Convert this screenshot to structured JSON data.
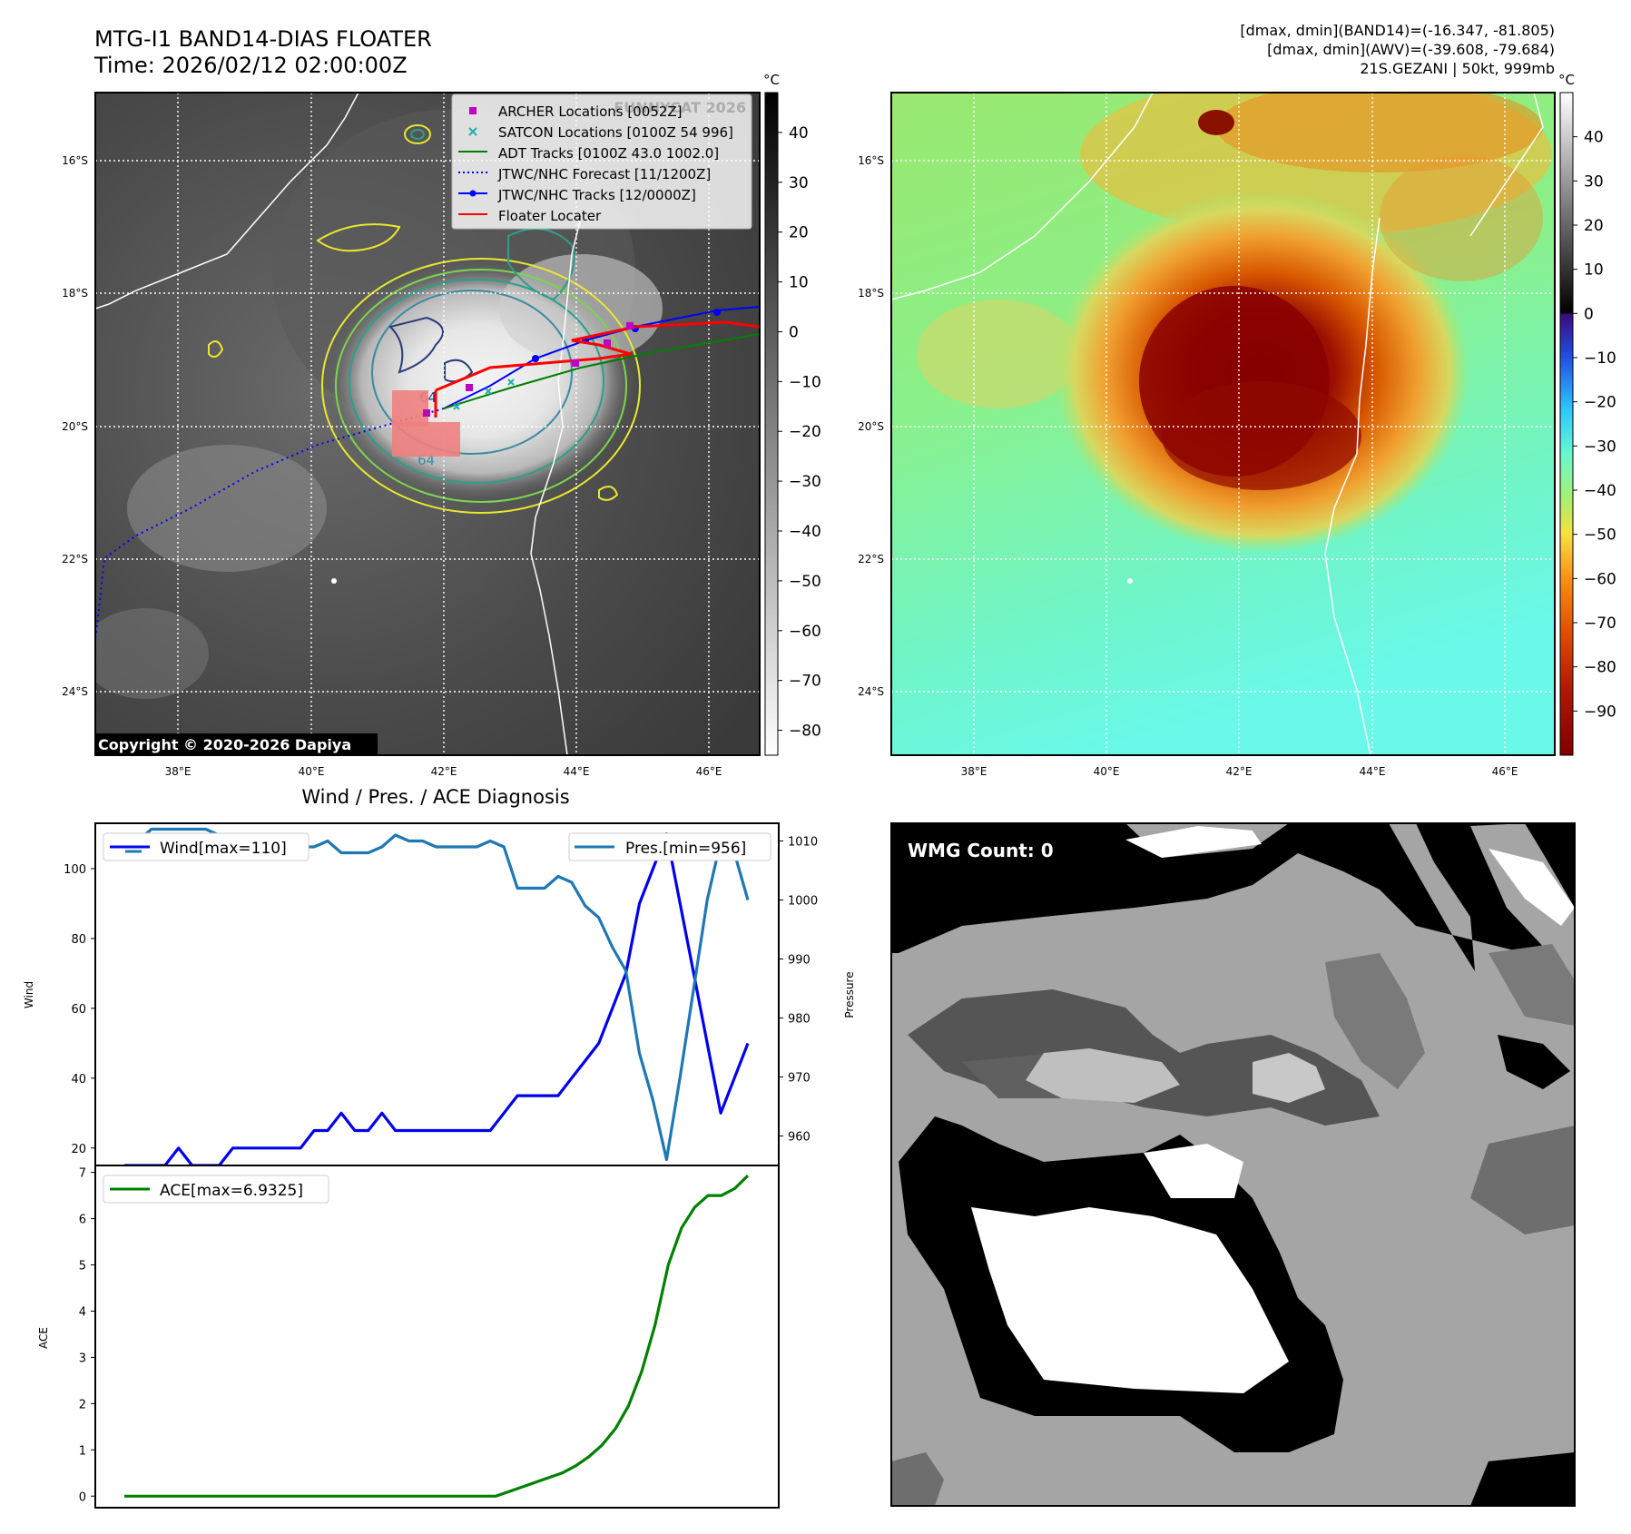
{
  "header": {
    "title_line1": "MTG-I1 BAND14-DIAS FLOATER",
    "title_line2": "Time: 2026/02/12 02:00:00Z",
    "info_line1": "[dmax, dmin](BAND14)=(-16.347, -81.805)",
    "info_line2": "[dmax, dmin](AWV)=(-39.608, -79.684)",
    "info_line3": "21S.GEZANI | 50kt, 999mb"
  },
  "map": {
    "lat_labels": [
      "16°S",
      "18°S",
      "20°S",
      "22°S",
      "24°S"
    ],
    "lon_labels": [
      "38°E",
      "40°E",
      "42°E",
      "44°E",
      "46°E"
    ],
    "watermark": "FUNNYCAT 2026",
    "copyright": "Copyright © 2020-2026 Dapiya",
    "contour_label": "64",
    "legend": [
      {
        "label": "ARCHER Locations [0052Z]",
        "color": "#c000c0",
        "kind": "square"
      },
      {
        "label": "SATCON Locations [0100Z 54 996]",
        "color": "#20b0b0",
        "kind": "x"
      },
      {
        "label": "ADT Tracks [0100Z 43.0 1002.0]",
        "color": "#008000",
        "kind": "line"
      },
      {
        "label": "JTWC/NHC Forecast [11/1200Z]",
        "color": "#0000ff",
        "kind": "dotted"
      },
      {
        "label": "JTWC/NHC Tracks [12/0000Z]",
        "color": "#0000ff",
        "kind": "line-dot"
      },
      {
        "label": "Floater Locater",
        "color": "#ff0000",
        "kind": "line"
      }
    ]
  },
  "colorbar_left": {
    "unit": "°C",
    "ticks": [
      "40",
      "30",
      "20",
      "10",
      "0",
      "−10",
      "−20",
      "−30",
      "−40",
      "−50",
      "−60",
      "−70",
      "−80"
    ],
    "range": [
      48,
      -85
    ]
  },
  "colorbar_right": {
    "unit": "°C",
    "ticks": [
      "40",
      "30",
      "20",
      "10",
      "0",
      "−10",
      "−20",
      "−30",
      "−40",
      "−50",
      "−60",
      "−70",
      "−80",
      "−90"
    ],
    "range": [
      50,
      -100
    ]
  },
  "wmg": {
    "label": "WMG Count: 0"
  },
  "chart_data": [
    {
      "type": "line",
      "title": "Wind / Pres. / ACE Diagnosis",
      "ylabel": "Wind",
      "ylabel_right": "Pressure",
      "ylim": [
        15,
        113
      ],
      "ylim_right": [
        955,
        1013
      ],
      "yticks": [
        20,
        40,
        60,
        80,
        100
      ],
      "yticks_right": [
        960,
        970,
        980,
        990,
        1000,
        1010
      ],
      "series": [
        {
          "name": "Wind[max=110]",
          "axis": "left",
          "color": "#0000ee",
          "values": [
            15,
            15,
            15,
            15,
            20,
            15,
            15,
            15,
            20,
            20,
            20,
            20,
            20,
            20,
            25,
            25,
            30,
            25,
            25,
            30,
            25,
            25,
            25,
            25,
            25,
            25,
            25,
            25,
            30,
            35,
            35,
            35,
            35,
            40,
            45,
            50,
            60,
            70,
            90,
            100,
            110,
            90,
            70,
            50,
            30,
            40,
            50
          ]
        },
        {
          "name": "Pres.[min=956]",
          "axis": "right",
          "color": "#1f77b4",
          "values": [
            1010,
            1010,
            1012,
            1012,
            1012,
            1012,
            1012,
            1011,
            1010,
            1010,
            1010,
            1009,
            1009,
            1009,
            1009,
            1010,
            1008,
            1008,
            1008,
            1009,
            1011,
            1010,
            1010,
            1009,
            1009,
            1009,
            1009,
            1010,
            1009,
            1002,
            1002,
            1002,
            1004,
            1003,
            999,
            997,
            992,
            988,
            974,
            966,
            956,
            970,
            985,
            1000,
            1010,
            1008,
            1000
          ]
        }
      ]
    },
    {
      "type": "line",
      "ylabel": "ACE",
      "ylim": [
        -0.25,
        7.15
      ],
      "yticks": [
        0,
        1,
        2,
        3,
        4,
        5,
        6,
        7
      ],
      "series": [
        {
          "name": "ACE[max=6.9325]",
          "color": "#008000",
          "values": [
            0,
            0,
            0,
            0,
            0,
            0,
            0,
            0,
            0,
            0,
            0,
            0,
            0,
            0,
            0,
            0,
            0,
            0,
            0,
            0,
            0,
            0,
            0,
            0,
            0,
            0,
            0,
            0,
            0,
            0.1,
            0.2,
            0.3,
            0.4,
            0.5,
            0.65,
            0.85,
            1.1,
            1.45,
            1.95,
            2.7,
            3.7,
            5.0,
            5.8,
            6.25,
            6.5,
            6.5,
            6.65,
            6.93
          ]
        }
      ]
    }
  ]
}
